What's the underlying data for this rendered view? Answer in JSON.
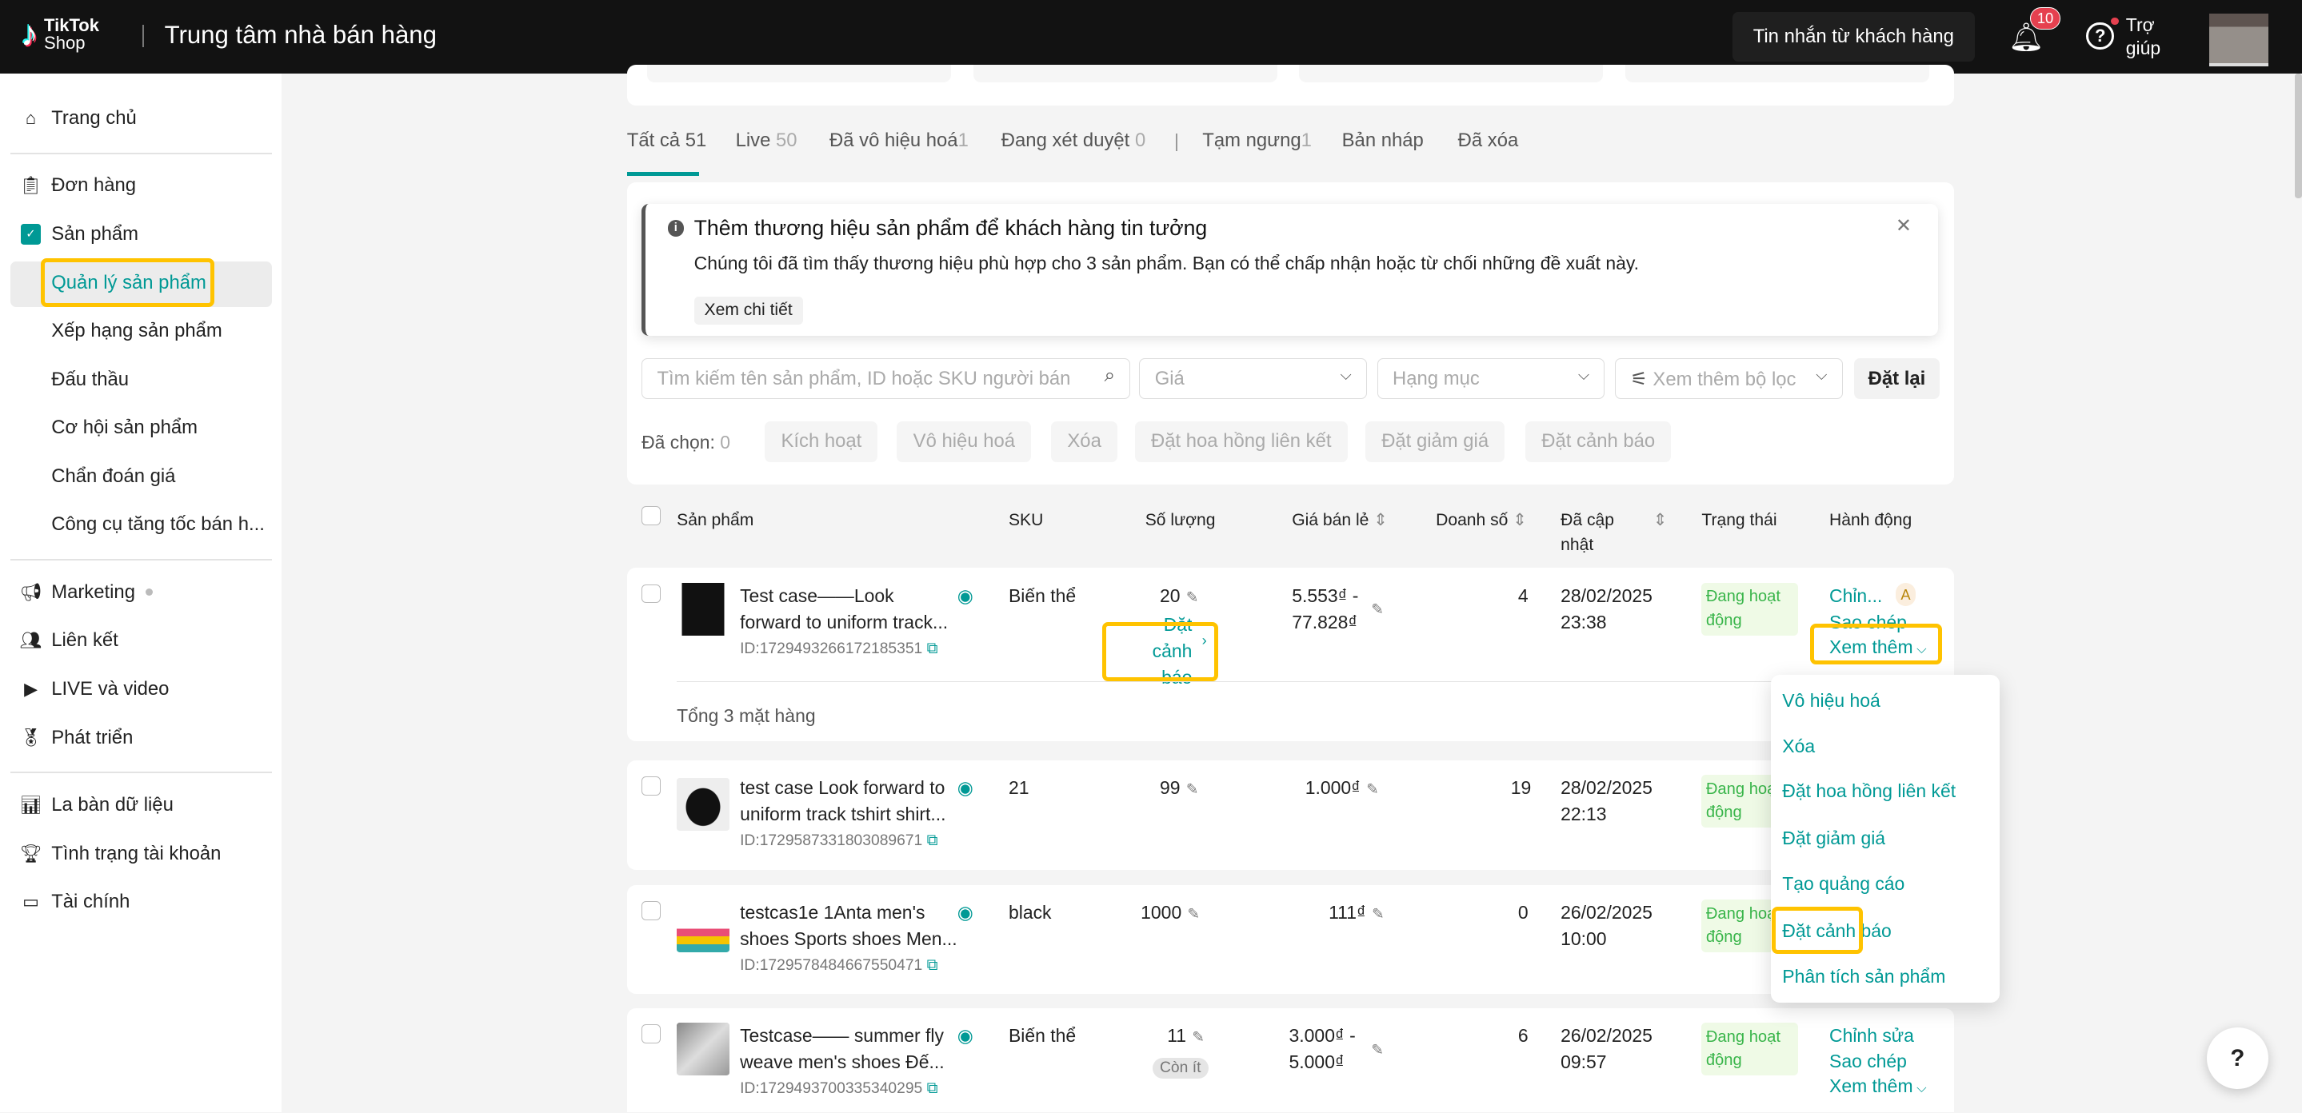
{
  "header": {
    "logo_top": "TikTok",
    "logo_bottom": "Shop",
    "title": "Trung tâm nhà bán hàng",
    "messages_btn": "Tin nhắn từ khách hàng",
    "notif_count": "10",
    "help_label": "Trợ giúp"
  },
  "sidebar": {
    "items": [
      {
        "label": "Trang chủ",
        "icon": "home-icon"
      },
      {
        "label": "Đơn hàng",
        "icon": "clipboard-icon"
      },
      {
        "label": "Sản phẩm",
        "icon": "bag-icon"
      },
      {
        "label": "Quản lý sản phẩm"
      },
      {
        "label": "Xếp hạng sản phẩm"
      },
      {
        "label": "Đấu thầu"
      },
      {
        "label": "Cơ hội sản phẩm"
      },
      {
        "label": "Chẩn đoán giá"
      },
      {
        "label": "Công cụ tăng tốc bán h..."
      },
      {
        "label": "Marketing",
        "icon": "megaphone-icon"
      },
      {
        "label": "Liên kết",
        "icon": "users-icon"
      },
      {
        "label": "LIVE và video",
        "icon": "video-icon"
      },
      {
        "label": "Phát triển",
        "icon": "medal-icon"
      },
      {
        "label": "La bàn dữ liệu",
        "icon": "chart-icon"
      },
      {
        "label": "Tình trạng tài khoản",
        "icon": "trophy-icon"
      },
      {
        "label": "Tài chính",
        "icon": "wallet-icon"
      }
    ]
  },
  "tabs": [
    {
      "label": "Tất cả",
      "count": "51"
    },
    {
      "label": "Live",
      "count": "50"
    },
    {
      "label": "Đã vô hiệu hoá",
      "count": "1"
    },
    {
      "label": "Đang xét duyệt",
      "count": "0"
    },
    {
      "label": "Tạm ngưng",
      "count": "1"
    },
    {
      "label": "Bản nháp",
      "count": ""
    },
    {
      "label": "Đã xóa",
      "count": ""
    }
  ],
  "banner": {
    "title": "Thêm thương hiệu sản phẩm để khách hàng tin tưởng",
    "text": "Chúng tôi đã tìm thấy thương hiệu phù hợp cho 3 sản phẩm. Bạn có thể chấp nhận hoặc từ chối những đề xuất này.",
    "button": "Xem chi tiết"
  },
  "filters": {
    "search_placeholder": "Tìm kiếm tên sản phẩm, ID hoặc SKU người bán",
    "price": "Giá",
    "category": "Hạng mục",
    "more": "Xem thêm bộ lọc",
    "reset": "Đặt lại"
  },
  "bulk": {
    "selected_label": "Đã chọn:",
    "selected_count": "0",
    "actions": [
      "Kích hoạt",
      "Vô hiệu hoá",
      "Xóa",
      "Đặt hoa hồng liên kết",
      "Đặt giảm giá",
      "Đặt cảnh báo"
    ]
  },
  "table": {
    "columns": [
      "Sản phẩm",
      "SKU",
      "Số lượng",
      "Giá bán lẻ",
      "Doanh số",
      "Đã cập nhật",
      "Trạng thái",
      "Hành động"
    ],
    "rows": [
      {
        "name1": "Test case——Look",
        "name2": "forward to uniform track...",
        "id": "ID:1729493266172185351",
        "sku": "Biến thể",
        "qty": "20",
        "price1": "5.553₫ -",
        "price2": "77.828₫",
        "sales": "4",
        "date": "28/02/2025",
        "time": "23:38",
        "status": "Đang hoạt động",
        "qty_alert": "Đặt cảnh báo",
        "total": "Tổng 3 mặt hàng",
        "act1": "Chỉn...",
        "act2": "Sao chép",
        "act3": "Xem thêm",
        "badge": "A"
      },
      {
        "name1": "test case Look forward to",
        "name2": "uniform track tshirt shirt...",
        "id": "ID:1729587331803089671",
        "sku": "21",
        "qty": "99",
        "price1": "1.000₫",
        "sales": "19",
        "date": "28/02/2025",
        "time": "22:13",
        "status": "Đang hoạt động"
      },
      {
        "name1": "testcas1e 1Anta men's",
        "name2": "shoes Sports shoes Men...",
        "id": "ID:1729578484667550471",
        "sku": "black",
        "qty": "1000",
        "price1": "111₫",
        "sales": "0",
        "date": "26/02/2025",
        "time": "10:00",
        "status": "Đang hoạt động"
      },
      {
        "name1": "Testcase—— summer fly",
        "name2": "weave men's shoes Đế...",
        "id": "ID:1729493700335340295",
        "sku": "Biến thể",
        "qty": "11",
        "low": "Còn ít",
        "price1": "3.000₫ -",
        "price2": "5.000₫",
        "sales": "6",
        "date": "26/02/2025",
        "time": "09:57",
        "status": "Đang hoạt động",
        "act1": "Chỉnh sửa",
        "act2": "Sao chép",
        "act3": "Xem thêm"
      }
    ]
  },
  "menu": [
    "Vô hiệu hoá",
    "Xóa",
    "Đặt hoa hồng liên kết",
    "Đặt giảm giá",
    "Tạo quảng cáo",
    "Đặt cảnh báo",
    "Phân tích sản phẩm"
  ],
  "colors": {
    "accent": "#009995",
    "highlight": "#ffc300",
    "header_bg": "#121212",
    "status_green": "#39b54a",
    "badge_red": "#e5404f"
  }
}
